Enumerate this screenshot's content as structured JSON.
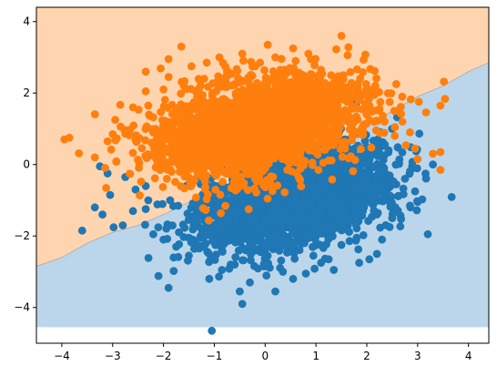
{
  "chart_data": {
    "type": "scatter",
    "title": "",
    "xlabel": "",
    "ylabel": "",
    "xlim": [
      -4.5,
      4.4
    ],
    "ylim": [
      -5.0,
      4.4
    ],
    "xticks": [
      -4,
      -3,
      -2,
      -1,
      0,
      1,
      2,
      3,
      4
    ],
    "yticks": [
      -4,
      -2,
      0,
      2,
      4
    ],
    "grid": false,
    "legend": "none",
    "background": {
      "type": "decision_regions",
      "y_extent": [
        -4.55,
        4.4
      ],
      "boundary": [
        [
          -4.5,
          -2.85
        ],
        [
          -4.0,
          -2.6
        ],
        [
          -3.5,
          -2.2
        ],
        [
          -3.0,
          -1.9
        ],
        [
          -2.5,
          -1.7
        ],
        [
          -2.0,
          -1.4
        ],
        [
          -1.5,
          -1.05
        ],
        [
          -1.0,
          -0.75
        ],
        [
          -0.5,
          -0.45
        ],
        [
          0.0,
          -0.1
        ],
        [
          0.5,
          0.15
        ],
        [
          1.0,
          0.4
        ],
        [
          1.5,
          0.7
        ],
        [
          2.0,
          1.05
        ],
        [
          2.5,
          1.5
        ],
        [
          3.0,
          1.9
        ],
        [
          3.5,
          2.2
        ],
        [
          4.0,
          2.6
        ],
        [
          4.4,
          2.85
        ]
      ],
      "upper_color": "#ffd5b0",
      "lower_color": "#bbd6ea",
      "edge_color": "#a8a8a8"
    },
    "series": [
      {
        "color": "#1f77b4",
        "core": {
          "cx": 0.5,
          "cy": -0.95,
          "sx": 1.0,
          "sy": 0.6,
          "theta_deg": 27,
          "count": 2600,
          "seed": 11
        },
        "points": [
          [
            -1.05,
            -4.65
          ],
          [
            -0.45,
            -3.9
          ],
          [
            -0.5,
            -3.55
          ],
          [
            0.2,
            -3.55
          ],
          [
            0.55,
            -3.2
          ],
          [
            -1.9,
            -3.45
          ],
          [
            1.35,
            -2.95
          ],
          [
            -3.6,
            -1.85
          ],
          [
            -3.35,
            -1.2
          ],
          [
            -3.2,
            -1.4
          ],
          [
            -3.05,
            -0.85
          ],
          [
            -3.1,
            -0.25
          ],
          [
            -3.25,
            -0.05
          ],
          [
            -2.8,
            -1.7
          ],
          [
            -2.6,
            -1.3
          ],
          [
            -2.2,
            -1.95
          ],
          [
            -2.0,
            -2.1
          ],
          [
            3.2,
            -1.95
          ],
          [
            3.0,
            -1.05
          ],
          [
            2.95,
            -0.75
          ],
          [
            3.3,
            0.0
          ],
          [
            2.9,
            -0.1
          ],
          [
            1.85,
            -2.75
          ],
          [
            2.05,
            -2.65
          ],
          [
            2.45,
            -1.75
          ],
          [
            2.3,
            -2.1
          ],
          [
            2.6,
            -1.3
          ],
          [
            1.1,
            -2.75
          ],
          [
            0.95,
            -2.55
          ],
          [
            -1.5,
            -2.55
          ],
          [
            -1.3,
            -2.35
          ],
          [
            -0.85,
            -2.95
          ],
          [
            -0.6,
            -2.8
          ],
          [
            0.05,
            -2.75
          ],
          [
            0.35,
            -3.0
          ],
          [
            1.5,
            -2.25
          ],
          [
            1.8,
            -2.05
          ],
          [
            2.75,
            -0.4
          ],
          [
            2.5,
            -1.5
          ],
          [
            -2.3,
            -1.0
          ],
          [
            -2.55,
            -0.7
          ],
          [
            -2.75,
            -0.35
          ],
          [
            -2.35,
            -0.6
          ],
          [
            2.85,
            -1.15
          ],
          [
            -1.75,
            -2.3
          ],
          [
            -1.1,
            -3.2
          ],
          [
            0.8,
            -3.05
          ],
          [
            -0.3,
            -3.3
          ],
          [
            1.25,
            -2.65
          ],
          [
            2.2,
            -2.5
          ]
        ]
      },
      {
        "color": "#ff7f0e",
        "core": {
          "cx": -0.15,
          "cy": 1.05,
          "sx": 1.05,
          "sy": 0.62,
          "theta_deg": 22,
          "count": 2600,
          "seed": 29
        },
        "points": [
          [
            -3.95,
            0.7
          ],
          [
            -3.35,
            0.2
          ],
          [
            -3.0,
            0.85
          ],
          [
            -2.95,
            1.25
          ],
          [
            -2.6,
            1.6
          ],
          [
            -2.3,
            1.65
          ],
          [
            -2.35,
            2.05
          ],
          [
            -2.35,
            2.6
          ],
          [
            -1.9,
            2.45
          ],
          [
            -1.9,
            2.95
          ],
          [
            -1.6,
            2.2
          ],
          [
            -1.45,
            2.75
          ],
          [
            -1.15,
            2.85
          ],
          [
            -0.9,
            3.0
          ],
          [
            -0.45,
            3.1
          ],
          [
            -0.1,
            2.85
          ],
          [
            0.05,
            3.35
          ],
          [
            0.2,
            3.0
          ],
          [
            0.55,
            3.25
          ],
          [
            0.6,
            2.9
          ],
          [
            0.9,
            2.95
          ],
          [
            1.1,
            2.65
          ],
          [
            1.15,
            2.15
          ],
          [
            1.5,
            3.6
          ],
          [
            1.5,
            2.05
          ],
          [
            1.8,
            2.05
          ],
          [
            1.95,
            1.95
          ],
          [
            2.15,
            1.95
          ],
          [
            2.45,
            1.75
          ],
          [
            2.6,
            1.5
          ],
          [
            2.85,
            0.9
          ],
          [
            2.95,
            0.45
          ],
          [
            3.3,
            0.3
          ],
          [
            3.45,
            0.35
          ],
          [
            3.45,
            -0.15
          ],
          [
            3.45,
            1.65
          ],
          [
            3.0,
            0.15
          ],
          [
            2.35,
            1.2
          ],
          [
            2.7,
            1.2
          ],
          [
            -3.1,
            0.65
          ],
          [
            -2.7,
            0.95
          ],
          [
            -1.65,
            3.3
          ],
          [
            -0.75,
            2.6
          ],
          [
            0.3,
            2.65
          ],
          [
            1.3,
            2.5
          ],
          [
            2.05,
            1.65
          ],
          [
            2.55,
            0.8
          ],
          [
            -2.0,
            2.1
          ],
          [
            -1.2,
            2.4
          ],
          [
            0.85,
            3.1
          ]
        ]
      }
    ]
  }
}
